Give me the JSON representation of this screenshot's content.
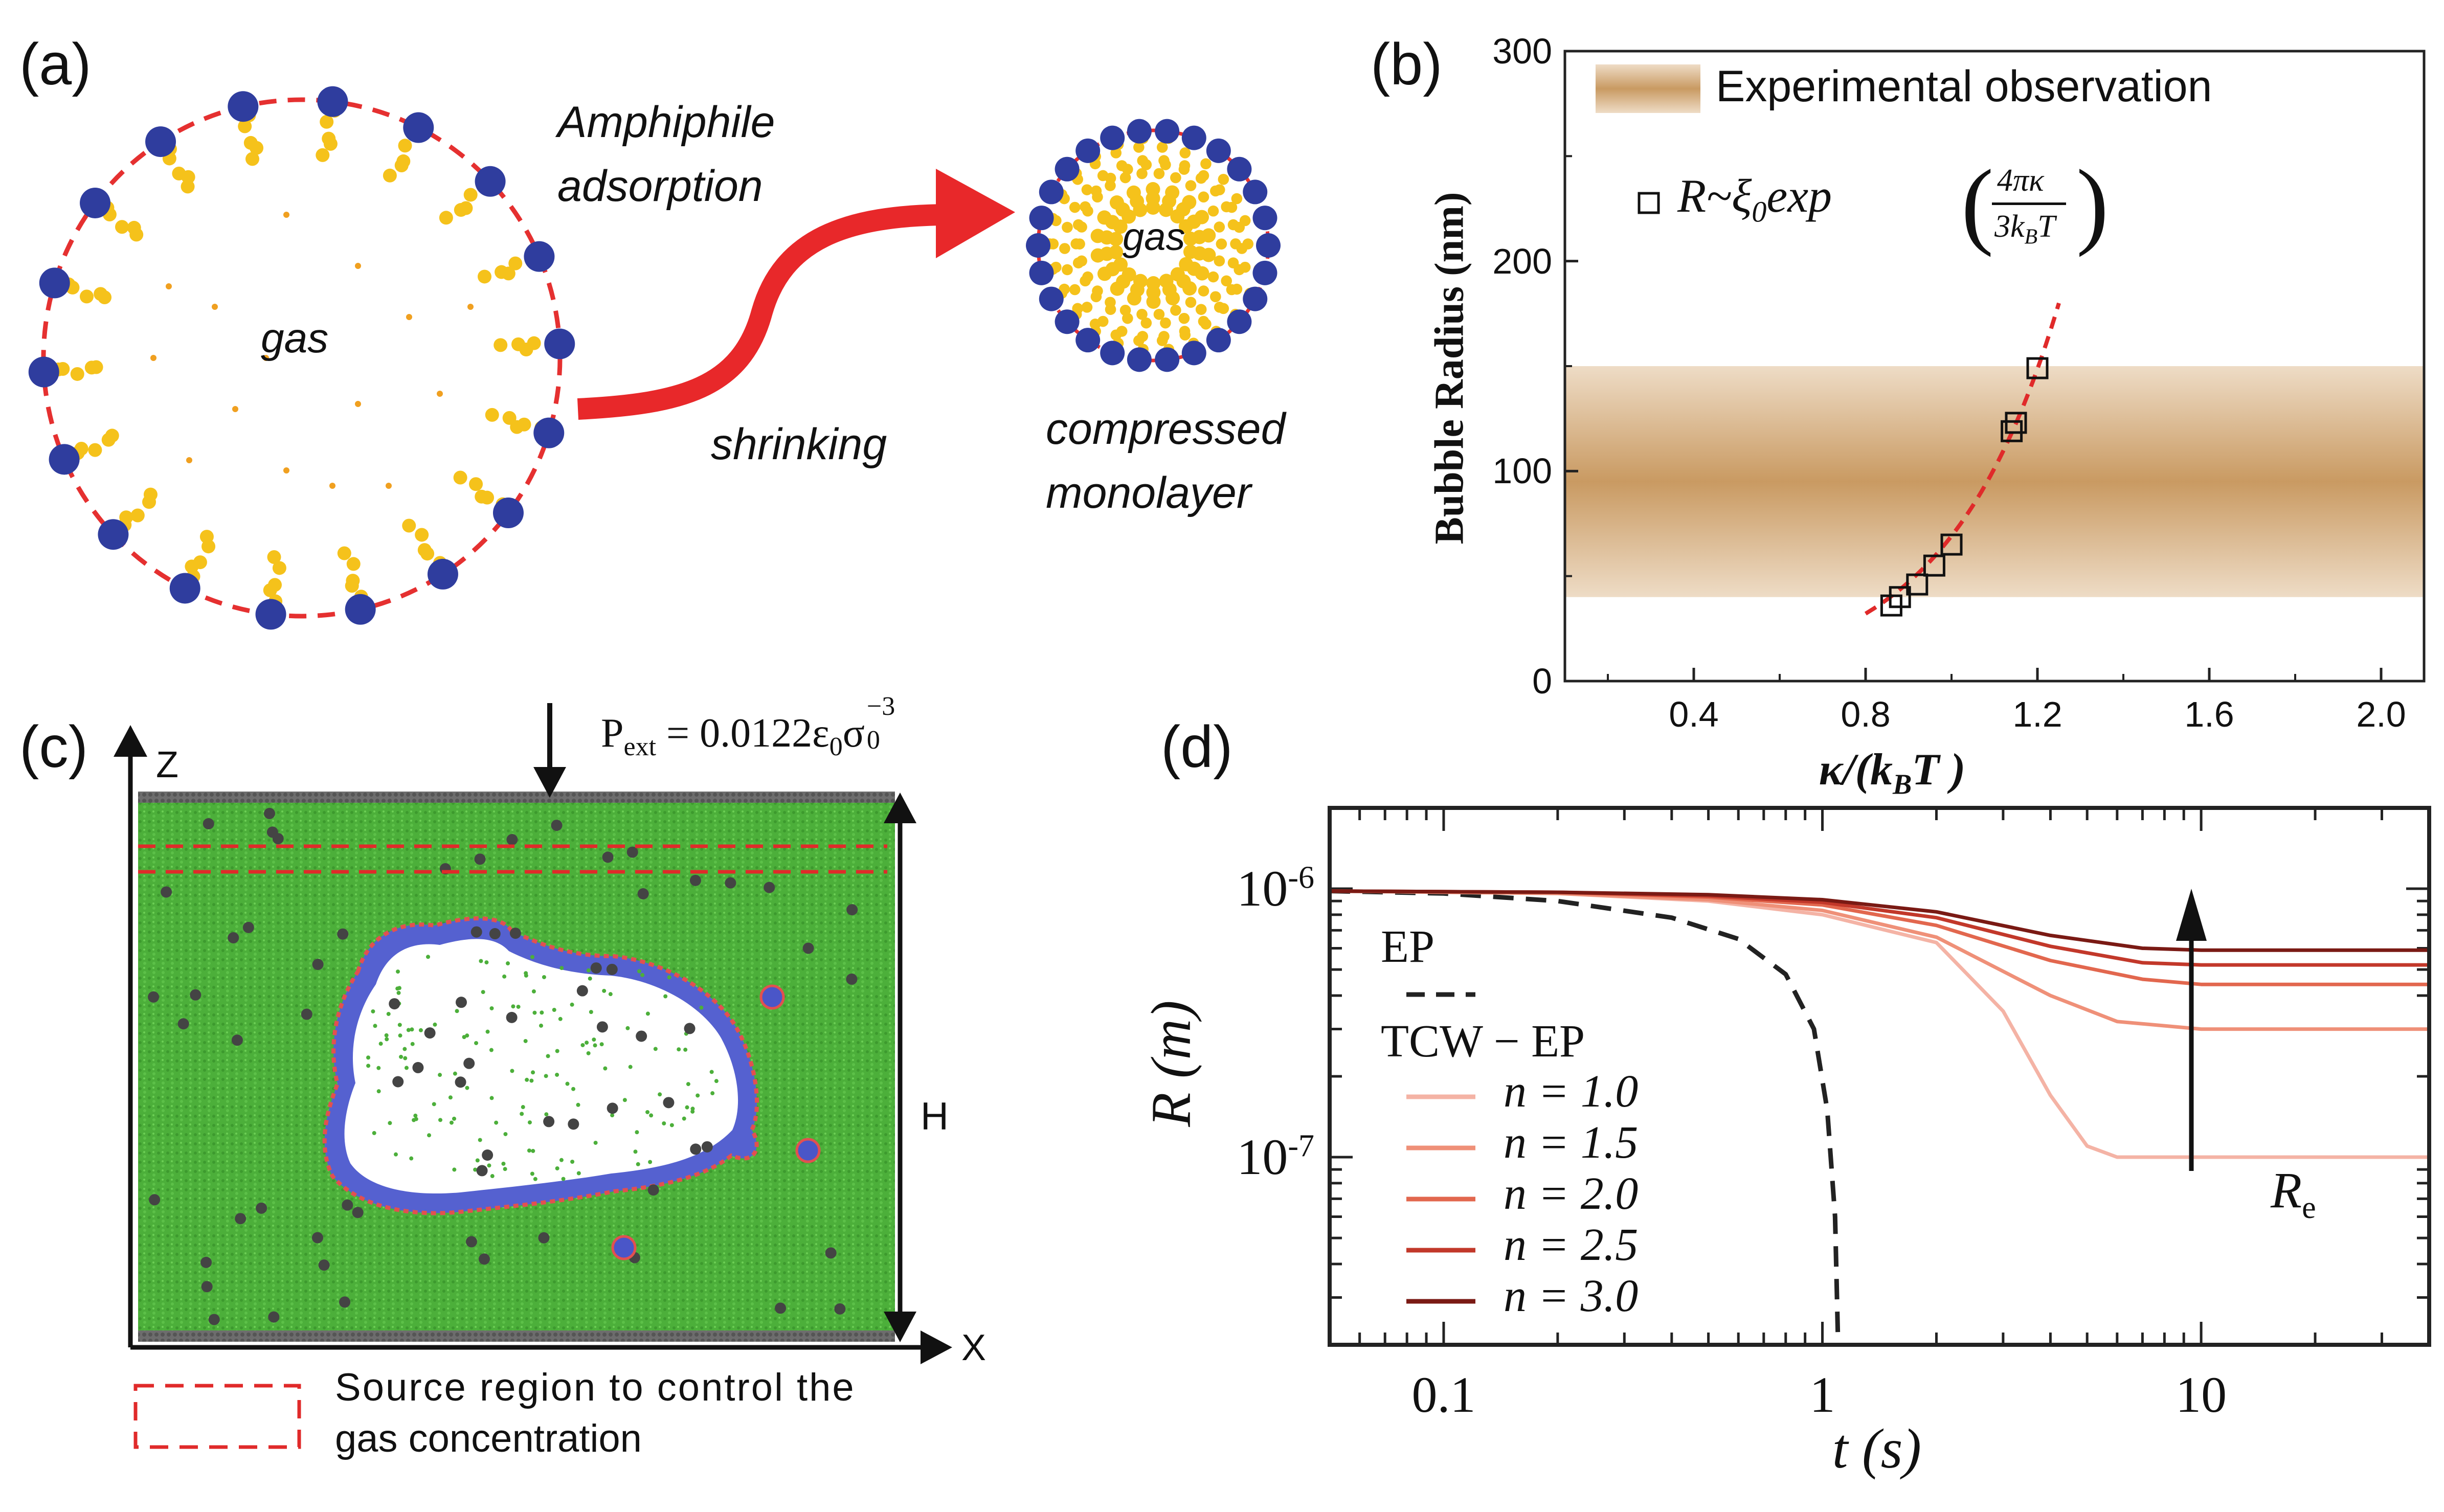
{
  "panels": {
    "a": {
      "label": "(a)",
      "gas_large": "gas",
      "gas_small": "gas",
      "adsorption_line1": "Amphiphile",
      "adsorption_line2": "adsorption",
      "shrinking": "shrinking",
      "compressed_line1": "compressed",
      "compressed_line2": "monolayer",
      "colors": {
        "boundary": "#e53030",
        "head": "#2f3d9e",
        "tail": "#f5c21b",
        "arrow": "#e8282a"
      }
    },
    "b": {
      "label": "(b)",
      "legend_band": "Experimental observation",
      "legend_fit_prefix": "R",
      "legend_fit_mid": "~ξ",
      "legend_fit_sub": "0",
      "legend_fit_exp": "exp",
      "legend_fit_num": "4πκ",
      "legend_fit_den_pre": "3k",
      "legend_fit_den_sub": "B",
      "legend_fit_den_post": "T",
      "colors": {
        "band": "#c99a62",
        "fit": "#e02a2a"
      }
    },
    "c": {
      "label": "(c)",
      "axis_z": "Z",
      "axis_x": "X",
      "height_label": "H",
      "pressure_prefix": "P",
      "pressure_sub": "ext",
      "pressure_mid": " = 0.0122ε",
      "pressure_sub2": "0",
      "pressure_sym": "σ",
      "pressure_sub3": "0",
      "pressure_sup": "−3",
      "legend_line1": "Source region to control the",
      "legend_line2": "gas concentration",
      "colors": {
        "liquid": "#4caf3a",
        "membrane": "#4a56c8",
        "source": "#e02a2a"
      }
    },
    "d": {
      "label": "(d)",
      "legend_ep": "EP",
      "legend_tcw": "TCW − EP",
      "re_label": "R",
      "re_sub": "e"
    }
  },
  "chart_data": [
    {
      "panel": "b",
      "type": "scatter",
      "xlabel": "κ/(k_BT)",
      "ylabel": "Bubble Radius  (nm)",
      "xlim": [
        0.1,
        2.1
      ],
      "ylim": [
        0,
        300
      ],
      "xticks": [
        "0.4",
        "0.8",
        "1.2",
        "1.6",
        "2.0"
      ],
      "xtick_values": [
        0.4,
        0.8,
        1.2,
        1.6,
        2.0
      ],
      "yticks": [
        "0",
        "100",
        "200",
        "300"
      ],
      "ytick_values": [
        0,
        100,
        200,
        300
      ],
      "band": {
        "name": "Experimental observation",
        "y_range": [
          40,
          150
        ]
      },
      "points": {
        "name": "R~ξ0 exp(4πκ/3kBT)",
        "x": [
          0.86,
          0.88,
          0.92,
          0.96,
          1.0,
          1.14,
          1.15,
          1.2
        ],
        "y": [
          36,
          40,
          46,
          55,
          65,
          119,
          123,
          149
        ]
      },
      "fit": {
        "A": 1.5,
        "B": 3.83,
        "x_range": [
          0.8,
          1.25
        ]
      }
    },
    {
      "panel": "d",
      "type": "line",
      "xscale": "log",
      "yscale": "log",
      "xlabel": "t (s)",
      "ylabel": "R (m)",
      "xlim": [
        0.05,
        40
      ],
      "ylim": [
        2e-08,
        2e-06
      ],
      "xticks": [
        "0.1",
        "1",
        "10"
      ],
      "xtick_values": [
        0.1,
        1,
        10
      ],
      "yticks": [
        "10",
        "10"
      ],
      "ytick_exps": [
        "-6",
        "-7"
      ],
      "ytick_values": [
        1e-06,
        1e-07
      ],
      "series": [
        {
          "name": "EP",
          "style": "dashed",
          "color": "#222222",
          "x": [
            0.05,
            0.1,
            0.2,
            0.4,
            0.6,
            0.8,
            0.95,
            1.03,
            1.08,
            1.1
          ],
          "y": [
            9.8e-07,
            9.6e-07,
            9e-07,
            7.8e-07,
            6.5e-07,
            4.8e-07,
            3e-07,
            1.5e-07,
            6e-08,
            2e-08
          ]
        },
        {
          "name": "n = 1.0",
          "color": "#f4b3a5",
          "x": [
            0.05,
            0.2,
            0.5,
            1,
            2,
            3,
            4,
            5,
            6,
            10,
            40
          ],
          "y": [
            9.8e-07,
            9.6e-07,
            9e-07,
            8e-07,
            6.3e-07,
            3.5e-07,
            1.7e-07,
            1.1e-07,
            1e-07,
            1e-07,
            1e-07
          ]
        },
        {
          "name": "n = 1.5",
          "color": "#ef9078",
          "x": [
            0.05,
            0.2,
            0.5,
            1,
            2,
            4,
            6,
            10,
            40
          ],
          "y": [
            9.8e-07,
            9.6e-07,
            9.1e-07,
            8.3e-07,
            6.6e-07,
            4e-07,
            3.2e-07,
            3e-07,
            3e-07
          ]
        },
        {
          "name": "n = 2.0",
          "color": "#e2674e",
          "x": [
            0.05,
            0.2,
            0.5,
            1,
            2,
            4,
            7,
            10,
            40
          ],
          "y": [
            9.8e-07,
            9.7e-07,
            9.3e-07,
            8.7e-07,
            7.3e-07,
            5.4e-07,
            4.6e-07,
            4.4e-07,
            4.4e-07
          ]
        },
        {
          "name": "n = 2.5",
          "color": "#c2382a",
          "x": [
            0.05,
            0.2,
            0.5,
            1,
            2,
            4,
            7,
            10,
            40
          ],
          "y": [
            9.8e-07,
            9.7e-07,
            9.4e-07,
            8.9e-07,
            7.8e-07,
            6.1e-07,
            5.3e-07,
            5.2e-07,
            5.2e-07
          ]
        },
        {
          "name": "n = 3.0",
          "color": "#7a1a14",
          "x": [
            0.05,
            0.2,
            0.5,
            1,
            2,
            4,
            7,
            10,
            40
          ],
          "y": [
            9.8e-07,
            9.7e-07,
            9.5e-07,
            9.1e-07,
            8.2e-07,
            6.7e-07,
            6e-07,
            5.9e-07,
            5.9e-07
          ]
        }
      ]
    }
  ]
}
